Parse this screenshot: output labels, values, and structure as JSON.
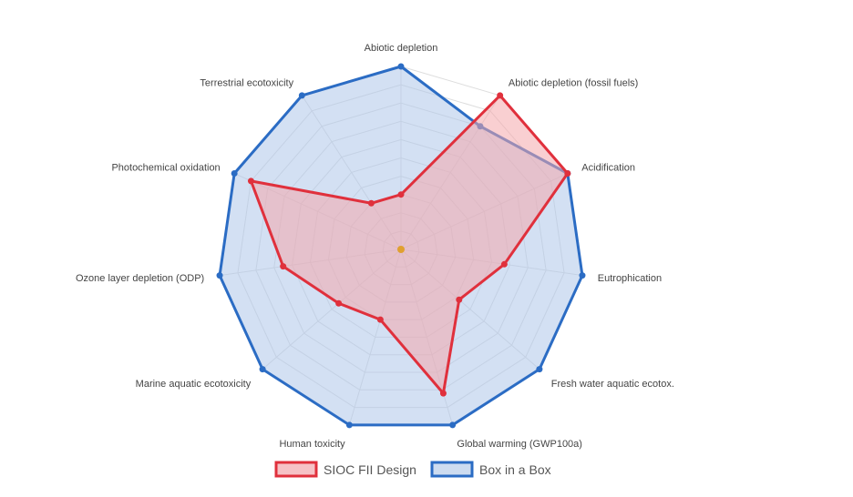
{
  "chart_data": {
    "type": "radar",
    "axes": [
      "Abiotic depletion",
      "Abiotic depletion (fossil fuels)",
      "Acidification",
      "Eutrophication",
      "Fresh water aquatic ecotox.",
      "Global warming (GWP100a)",
      "Human toxicity",
      "Marine aquatic ecotoxicity",
      "Ozone layer depletion (ODP)",
      "Photochemical oxidation",
      "Terrestrial ecotoxicity"
    ],
    "range": [
      0,
      100
    ],
    "grid_levels": 10,
    "series": [
      {
        "name": "Box in a Box",
        "values": [
          100,
          80,
          100,
          100,
          100,
          100,
          100,
          100,
          100,
          100,
          100
        ],
        "stroke": "#2b6cc4",
        "fill": "#aec6ea"
      },
      {
        "name": "SIOC FII Design",
        "values": [
          30,
          100,
          100,
          57,
          42,
          82,
          40,
          45,
          65,
          90,
          30
        ],
        "stroke": "#e0303c",
        "fill": "#f4a7ac"
      }
    ],
    "center_color": "#e0a030",
    "legend_position": "bottom",
    "grid": true
  }
}
